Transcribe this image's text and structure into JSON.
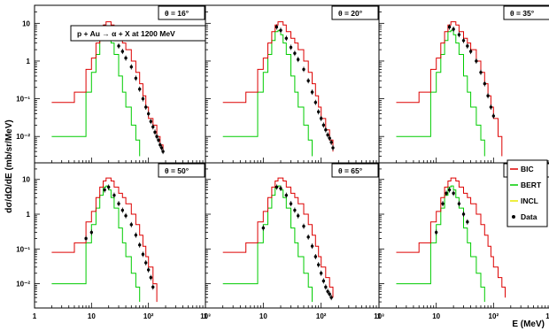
{
  "chart_data": {
    "type": "line",
    "title": "p + Au → α + X at 1200 MeV",
    "xlabel": "E (MeV)",
    "ylabel": "dσ/dΩ/dE (mb/sr/MeV)",
    "x_scale": "log",
    "y_scale": "log",
    "xlim": [
      1,
      1000
    ],
    "ylim_top_row": [
      0.002,
      30
    ],
    "ylim_bottom_row": [
      0.002,
      30
    ],
    "x_ticks": [
      "1",
      "10",
      "10²",
      "10³"
    ],
    "y_ticks": [
      "10⁻²",
      "10⁻¹",
      "1",
      "10"
    ],
    "grid": false,
    "legend": {
      "placement": "right",
      "entries": [
        {
          "name": "BIC",
          "color": "#dd0000",
          "marker": "line"
        },
        {
          "name": "BERT",
          "color": "#00cc00",
          "marker": "line"
        },
        {
          "name": "INCL",
          "color": "#e8e800",
          "marker": "line"
        },
        {
          "name": "Data",
          "color": "#000000",
          "marker": "dot"
        }
      ]
    },
    "panels": [
      {
        "label": "θ = 16°",
        "BIC": {
          "x": [
            2,
            5,
            8,
            10,
            12,
            14,
            16,
            18,
            20,
            22,
            25,
            30,
            35,
            40,
            50,
            60,
            70,
            80,
            90,
            100,
            120,
            140,
            160,
            180
          ],
          "y": [
            0.08,
            0.15,
            0.6,
            1.2,
            3,
            6,
            9,
            11,
            11,
            9,
            6,
            4,
            3,
            2,
            1,
            0.5,
            0.25,
            0.12,
            0.06,
            0.03,
            0.02,
            0.01,
            0.006,
            0.004
          ]
        },
        "BERT": {
          "x": [
            2,
            3,
            5,
            8,
            10,
            12,
            14,
            16,
            18,
            20,
            22,
            25,
            30,
            35,
            40,
            50,
            60,
            70
          ],
          "y": [
            0.01,
            0.01,
            0.01,
            0.15,
            0.5,
            1.5,
            3.5,
            6,
            6.5,
            5,
            3,
            1.5,
            0.4,
            0.15,
            0.06,
            0.02,
            0.008,
            0.003
          ]
        },
        "Data": {
          "x": [
            17,
            20,
            25,
            30,
            35,
            40,
            50,
            60,
            70,
            80,
            90,
            100,
            110,
            120,
            130,
            140,
            150,
            160,
            170,
            180
          ],
          "y": [
            8,
            7,
            4.5,
            2.5,
            1.8,
            1.2,
            0.7,
            0.35,
            0.18,
            0.1,
            0.06,
            0.04,
            0.025,
            0.018,
            0.013,
            0.01,
            0.008,
            0.006,
            0.005,
            0.004
          ]
        }
      },
      {
        "label": "θ = 20°",
        "BIC": {
          "x": [
            2,
            5,
            8,
            10,
            12,
            14,
            16,
            18,
            20,
            22,
            25,
            30,
            35,
            40,
            50,
            60,
            70,
            80,
            90,
            100,
            120,
            140,
            160
          ],
          "y": [
            0.08,
            0.15,
            0.6,
            1.2,
            3,
            6,
            9,
            11,
            11,
            9,
            6,
            4,
            3,
            2,
            1,
            0.5,
            0.25,
            0.12,
            0.06,
            0.03,
            0.015,
            0.008,
            0.004
          ]
        },
        "BERT": {
          "x": [
            2,
            3,
            5,
            8,
            10,
            12,
            14,
            16,
            18,
            20,
            22,
            25,
            30,
            35,
            40,
            50,
            60,
            70
          ],
          "y": [
            0.01,
            0.01,
            0.01,
            0.15,
            0.5,
            1.5,
            3.5,
            6,
            6.5,
            5,
            3,
            1.5,
            0.4,
            0.15,
            0.06,
            0.02,
            0.008,
            0.003
          ]
        },
        "Data": {
          "x": [
            17,
            20,
            25,
            30,
            35,
            40,
            50,
            60,
            70,
            80,
            90,
            100,
            110,
            120,
            130,
            140,
            150,
            160
          ],
          "y": [
            8,
            6.5,
            4,
            2.3,
            1.6,
            1.1,
            0.6,
            0.3,
            0.15,
            0.08,
            0.045,
            0.03,
            0.02,
            0.015,
            0.011,
            0.009,
            0.007,
            0.005
          ]
        }
      },
      {
        "label": "θ = 35°",
        "BIC": {
          "x": [
            2,
            5,
            8,
            10,
            12,
            14,
            16,
            18,
            20,
            22,
            25,
            30,
            35,
            40,
            50,
            60,
            70,
            80,
            90,
            100,
            120,
            140
          ],
          "y": [
            0.08,
            0.15,
            0.6,
            1.2,
            3,
            6,
            9,
            11,
            11,
            9,
            6,
            4,
            3,
            2,
            1,
            0.5,
            0.25,
            0.12,
            0.06,
            0.03,
            0.01,
            0.003
          ]
        },
        "BERT": {
          "x": [
            2,
            3,
            5,
            8,
            10,
            12,
            14,
            16,
            18,
            20,
            22,
            25,
            30,
            35,
            40,
            50,
            60,
            70
          ],
          "y": [
            0.01,
            0.01,
            0.01,
            0.15,
            0.5,
            1.5,
            3.5,
            6,
            6.5,
            5,
            3,
            1.5,
            0.4,
            0.15,
            0.06,
            0.02,
            0.008,
            0.003
          ]
        },
        "Data": {
          "x": [
            17,
            20,
            25,
            30,
            35,
            40,
            50,
            60,
            70,
            80,
            90,
            100
          ],
          "y": [
            8,
            7,
            5,
            3.5,
            2.5,
            1.8,
            1,
            0.5,
            0.25,
            0.12,
            0.06,
            0.035
          ]
        }
      },
      {
        "label": "θ = 50°",
        "BIC": {
          "x": [
            2,
            5,
            8,
            10,
            12,
            14,
            16,
            18,
            20,
            22,
            25,
            30,
            35,
            40,
            50,
            60,
            70,
            80,
            90,
            100,
            120,
            140
          ],
          "y": [
            0.08,
            0.15,
            0.6,
            1.2,
            3,
            6,
            9,
            11,
            11,
            9,
            6,
            4,
            3,
            2,
            1,
            0.5,
            0.25,
            0.12,
            0.06,
            0.03,
            0.01,
            0.003
          ]
        },
        "BERT": {
          "x": [
            2,
            3,
            5,
            8,
            10,
            12,
            14,
            16,
            18,
            20,
            22,
            25,
            30,
            35,
            40,
            50,
            60,
            70
          ],
          "y": [
            0.01,
            0.01,
            0.01,
            0.15,
            0.5,
            1.5,
            3.5,
            6,
            6.5,
            5,
            3,
            1.5,
            0.4,
            0.15,
            0.06,
            0.02,
            0.008,
            0.003
          ]
        },
        "Data": {
          "x": [
            8,
            10,
            17,
            20,
            25,
            30,
            35,
            40,
            50,
            60,
            70,
            80,
            90,
            100,
            110,
            120
          ],
          "y": [
            0.2,
            0.3,
            5,
            6,
            3.5,
            2,
            1.3,
            0.9,
            0.5,
            0.25,
            0.13,
            0.07,
            0.04,
            0.025,
            0.015,
            0.008
          ]
        }
      },
      {
        "label": "θ = 65°",
        "BIC": {
          "x": [
            2,
            5,
            8,
            10,
            12,
            14,
            16,
            18,
            20,
            22,
            25,
            30,
            35,
            40,
            50,
            60,
            70,
            80,
            90,
            100,
            120,
            140,
            160
          ],
          "y": [
            0.08,
            0.15,
            0.6,
            1.2,
            3,
            6,
            9,
            11,
            11,
            9,
            6,
            4,
            3,
            2,
            1,
            0.5,
            0.25,
            0.12,
            0.06,
            0.03,
            0.015,
            0.008,
            0.004
          ]
        },
        "BERT": {
          "x": [
            2,
            3,
            5,
            8,
            10,
            12,
            14,
            16,
            18,
            20,
            22,
            25,
            30,
            35,
            40,
            50,
            60,
            70
          ],
          "y": [
            0.01,
            0.01,
            0.01,
            0.15,
            0.5,
            1.5,
            3.5,
            6,
            6.5,
            5,
            3,
            1.5,
            0.4,
            0.15,
            0.06,
            0.02,
            0.008,
            0.003
          ]
        },
        "Data": {
          "x": [
            10,
            17,
            20,
            25,
            30,
            35,
            40,
            50,
            60,
            70,
            80,
            90,
            100,
            110,
            120,
            130,
            140,
            150
          ],
          "y": [
            0.4,
            6,
            5.5,
            3.5,
            2,
            1.3,
            0.9,
            0.45,
            0.22,
            0.12,
            0.06,
            0.035,
            0.02,
            0.012,
            0.008,
            0.006,
            0.005,
            0.004
          ]
        }
      },
      {
        "label": "θ = 100°",
        "BIC": {
          "x": [
            2,
            5,
            8,
            10,
            12,
            14,
            16,
            18,
            20,
            22,
            25,
            30,
            35,
            40,
            50,
            60,
            70,
            80,
            90,
            100,
            120,
            140,
            160
          ],
          "y": [
            0.08,
            0.15,
            0.6,
            1.2,
            3,
            6,
            9,
            11,
            11,
            9,
            6,
            4,
            3,
            2,
            1,
            0.5,
            0.25,
            0.12,
            0.06,
            0.03,
            0.015,
            0.008,
            0.004
          ]
        },
        "BERT": {
          "x": [
            2,
            3,
            5,
            8,
            10,
            12,
            14,
            16,
            18,
            20,
            22,
            25,
            30,
            35,
            40,
            50,
            60,
            70
          ],
          "y": [
            0.01,
            0.01,
            0.01,
            0.15,
            0.5,
            1.5,
            3.5,
            6,
            6.5,
            5,
            3,
            1.5,
            0.4,
            0.15,
            0.06,
            0.02,
            0.008,
            0.003
          ]
        },
        "Data": {
          "x": [
            10,
            13,
            15,
            17,
            20,
            25,
            30,
            35
          ],
          "y": [
            0.3,
            2,
            4,
            5,
            4,
            2,
            1,
            0.6
          ]
        }
      }
    ]
  }
}
